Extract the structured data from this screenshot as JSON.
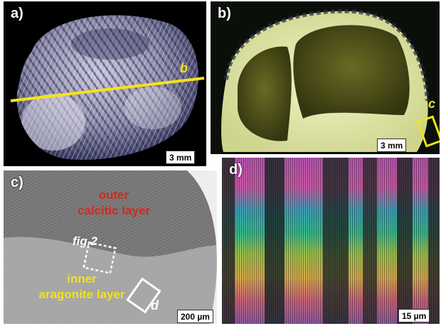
{
  "panels": {
    "a": {
      "label": "a)",
      "scale": "3 mm",
      "line_label": "b",
      "colors": {
        "line": "#f4e21a",
        "shell_light": "#d9d7e6",
        "shell_dark": "#2a2c58"
      }
    },
    "b": {
      "label": "b)",
      "scale": "3 mm",
      "box_label": "c",
      "colors": {
        "box": "#f4e21a",
        "shell": "#e6ebb0"
      }
    },
    "c": {
      "label": "c)",
      "outer_layer": [
        "outer",
        "calcitic layer"
      ],
      "inner_layer": [
        "inner",
        "aragonite layer"
      ],
      "fig_ref": "fig.2",
      "box_label": "d",
      "scale": "200 µm",
      "colors": {
        "outer_text": "#d22a1e",
        "inner_text": "#f2e21c"
      }
    },
    "d": {
      "label": "d)",
      "scale": "15 µm"
    }
  }
}
